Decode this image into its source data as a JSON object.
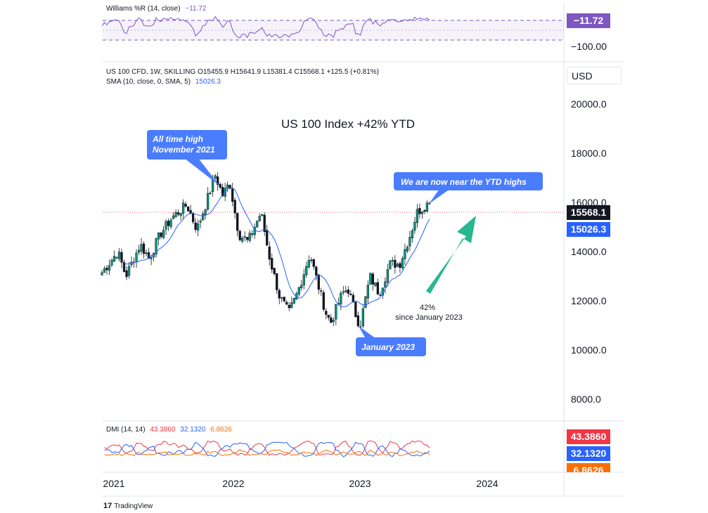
{
  "panels": {
    "williams": {
      "name": "Williams %R (14, close)",
      "value": "−11.72",
      "label_top": "−11.72",
      "label_low": "−100.00",
      "color": "#7e57c2"
    },
    "main_legend": {
      "line1": "US 100 CFD, 1W, SKILLING  O15455.9  H15641.9  L15381.4  C15568.1  +125.5 (+0.81%)",
      "sma_name": "SMA (10, close, 0, SMA, 5)",
      "sma_value": "15026.3"
    },
    "dmi": {
      "name": "DMI (14, 14)",
      "plus": "43.3860",
      "minus": "32.1320",
      "adx": "6.8626"
    },
    "currency": "USD",
    "last_price": "15568.1",
    "sma_tag": "15026.3",
    "brand": "TradingView"
  },
  "colors": {
    "up": "#089981",
    "down": "#f23645",
    "sma": "#2962ff",
    "accent": "#4a7cff",
    "arrow": "#26b88f",
    "williams": "#7e57c2",
    "dmi_plus": "#f23645",
    "dmi_minus": "#2962ff",
    "dmi_adx": "#ff6d00"
  },
  "chart_data": {
    "type": "candlestick",
    "title": "US 100 Index +42% YTD",
    "timeframe": "1W",
    "y_ticks": [
      "20000.0",
      "18000.0",
      "16000.0",
      "14000.0",
      "12000.0",
      "10000.0",
      "8000.0"
    ],
    "x_ticks": [
      "2021",
      "2022",
      "2023",
      "2024"
    ],
    "ylim": [
      7200,
      21200
    ],
    "close_path": [
      [
        "2021-01-01",
        12750
      ],
      [
        "2021-02-15",
        13600
      ],
      [
        "2021-03-10",
        12600
      ],
      [
        "2021-04-20",
        13900
      ],
      [
        "2021-05-15",
        13300
      ],
      [
        "2021-06-15",
        14300
      ],
      [
        "2021-07-20",
        15000
      ],
      [
        "2021-08-30",
        15500
      ],
      [
        "2021-09-28",
        14500
      ],
      [
        "2021-10-20",
        15400
      ],
      [
        "2021-11-19",
        16700
      ],
      [
        "2021-12-10",
        15900
      ],
      [
        "2021-12-30",
        16400
      ],
      [
        "2022-01-25",
        14300
      ],
      [
        "2022-02-20",
        14000
      ],
      [
        "2022-03-29",
        15200
      ],
      [
        "2022-04-20",
        13500
      ],
      [
        "2022-05-20",
        11800
      ],
      [
        "2022-06-16",
        11100
      ],
      [
        "2022-07-10",
        11900
      ],
      [
        "2022-08-15",
        13500
      ],
      [
        "2022-09-10",
        12100
      ],
      [
        "2022-09-30",
        11100
      ],
      [
        "2022-10-13",
        10700
      ],
      [
        "2022-11-15",
        11900
      ],
      [
        "2022-12-01",
        12100
      ],
      [
        "2022-12-28",
        10800
      ],
      [
        "2023-01-06",
        10700
      ],
      [
        "2023-02-02",
        12600
      ],
      [
        "2023-02-28",
        11900
      ],
      [
        "2023-03-30",
        13100
      ],
      [
        "2023-04-27",
        13100
      ],
      [
        "2023-05-25",
        14200
      ],
      [
        "2023-06-16",
        15200
      ],
      [
        "2023-07-20",
        15600
      ]
    ],
    "sma": {
      "name": "SMA (10, close, 0, SMA, 5)",
      "last": 15026.3
    },
    "last_close": 15568.1,
    "annotations": [
      {
        "text": "All time high November 2021",
        "date": "2021-11-19",
        "value": 16700
      },
      {
        "text": "January 2023",
        "date": "2023-01-06",
        "value": 10700
      },
      {
        "text": "We are now near the YTD highs",
        "date": "2023-07-20",
        "value": 15900
      },
      {
        "text": "42% since January 2023"
      }
    ]
  }
}
